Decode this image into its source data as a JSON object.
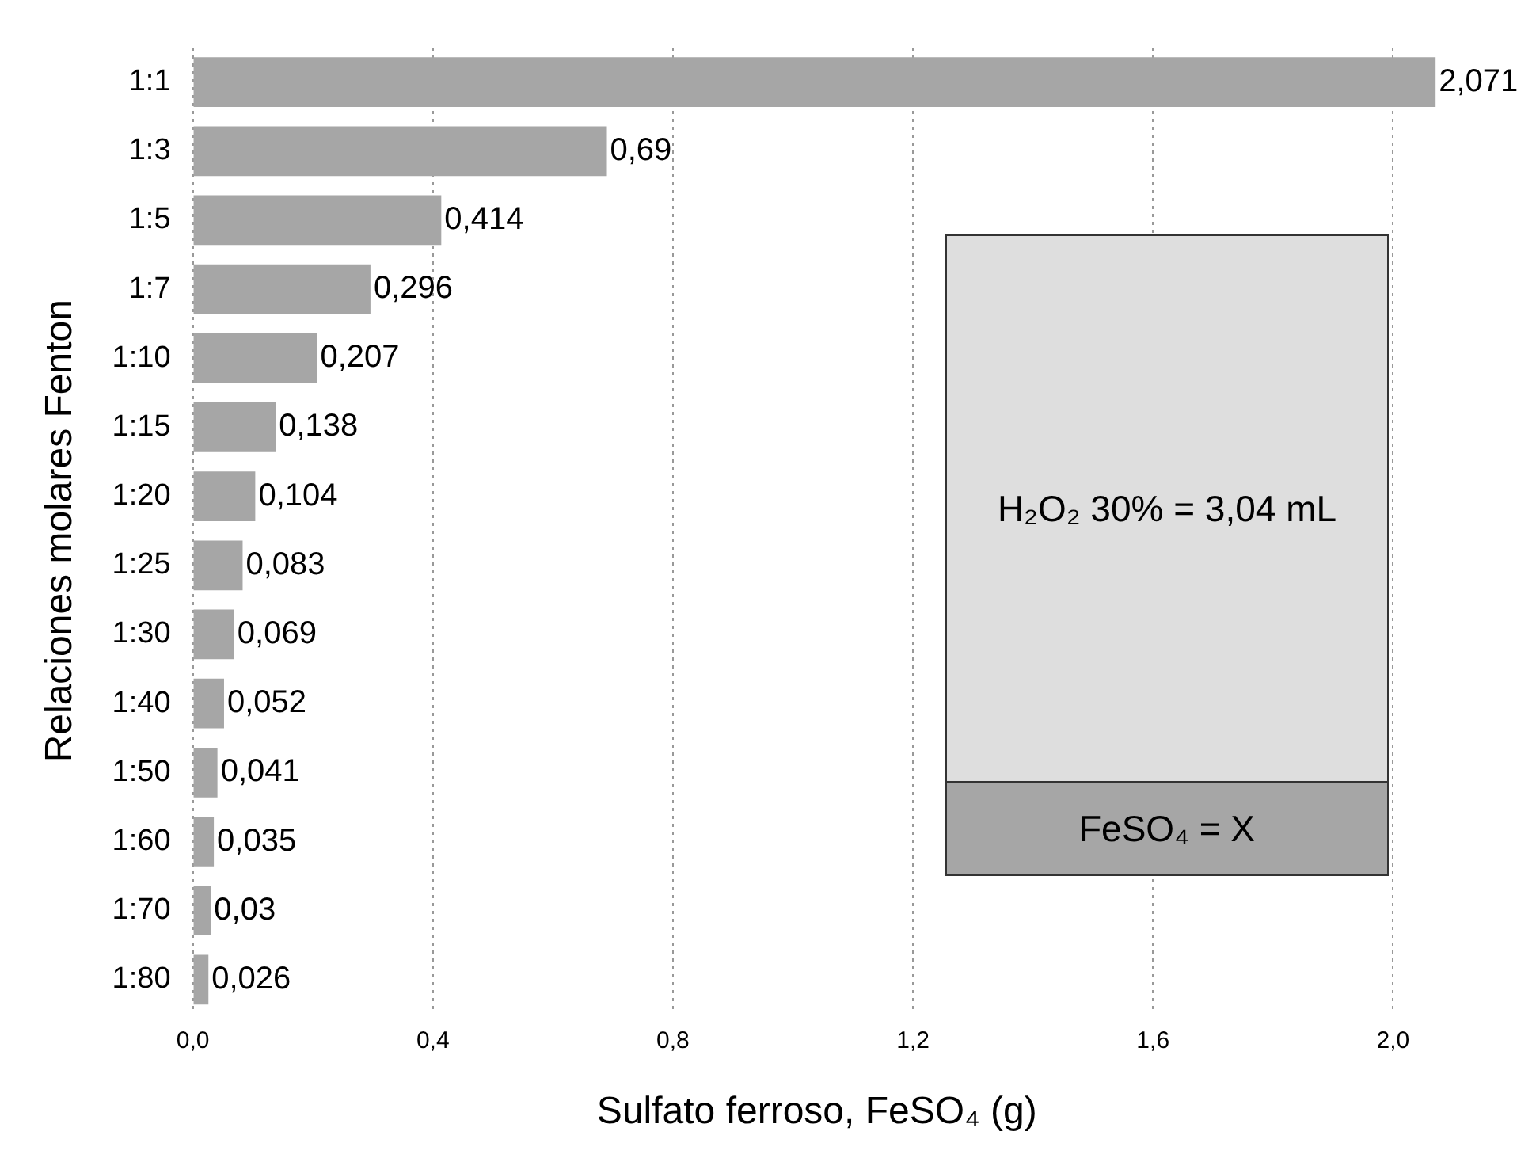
{
  "chart_data": {
    "type": "bar",
    "orientation": "horizontal",
    "xlabel": "Sulfato ferroso, FeSO₄ (g)",
    "ylabel": "Relaciones molares Fenton",
    "categories": [
      "1:1",
      "1:3",
      "1:5",
      "1:7",
      "1:10",
      "1:15",
      "1:20",
      "1:25",
      "1:30",
      "1:40",
      "1:50",
      "1:60",
      "1:70",
      "1:80"
    ],
    "values": [
      2.071,
      0.69,
      0.414,
      0.296,
      0.207,
      0.138,
      0.104,
      0.083,
      0.069,
      0.052,
      0.041,
      0.035,
      0.03,
      0.026
    ],
    "value_labels": [
      "2,071",
      "0,69",
      "0,414",
      "0,296",
      "0,207",
      "0,138",
      "0,104",
      "0,083",
      "0,069",
      "0,052",
      "0,041",
      "0,035",
      "0,03",
      "0,026"
    ],
    "color": "#a6a6a6",
    "xlim": [
      0,
      2.08
    ],
    "xticks": [
      {
        "value": 0,
        "label": "0,0"
      },
      {
        "value": 0.4,
        "label": "0,4"
      },
      {
        "value": 0.8,
        "label": "0,8"
      },
      {
        "value": 1.2,
        "label": "1,2"
      },
      {
        "value": 1.6,
        "label": "1,6"
      },
      {
        "value": 2.0,
        "label": "2,0"
      }
    ],
    "grid": "x",
    "legend": false,
    "annotations": [
      "H₂O₂ 30% = 3,04 mL",
      "FeSO₄ = X"
    ]
  }
}
